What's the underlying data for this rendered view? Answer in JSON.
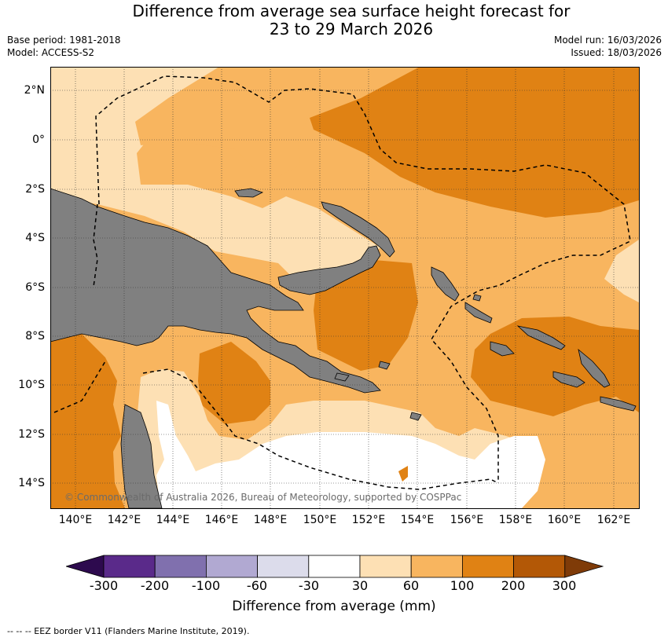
{
  "title_line1": "Difference from average sea surface height forecast for",
  "title_line2": "23 to 29 March 2026",
  "base_period": "Base period: 1981-2018",
  "model": "Model: ACCESS-S2",
  "model_run": "Model run: 16/03/2026",
  "issued": "Issued: 18/03/2026",
  "lat_labels": [
    "2°N",
    "0°",
    "2°S",
    "4°S",
    "6°S",
    "8°S",
    "10°S",
    "12°S",
    "14°S"
  ],
  "lon_labels": [
    "140°E",
    "142°E",
    "144°E",
    "146°E",
    "148°E",
    "150°E",
    "152°E",
    "154°E",
    "156°E",
    "158°E",
    "160°E",
    "162°E"
  ],
  "copyright": "© Commonwealth of Australia 2026, Bureau of Meteorology, supported by COSPPac",
  "colorbar": {
    "title": "Difference from average (mm)",
    "ticks": [
      "-300",
      "-200",
      "-100",
      "-60",
      "-30",
      "30",
      "60",
      "100",
      "200",
      "300"
    ],
    "colors": [
      "#2d0a4e",
      "#5a2a8a",
      "#8070ae",
      "#b1a9d2",
      "#dcdceb",
      "#ffffff",
      "#fde0b4",
      "#f8b55f",
      "#e08214",
      "#b35806",
      "#7f3b08"
    ]
  },
  "footnote": "--  --  -- EEZ border V11 (Flanders Marine Institute, 2019).",
  "colors": {
    "land": "#808080",
    "band_30_60": "#fde0b4",
    "band_60_100": "#f8b55f",
    "band_100_200": "#e08214",
    "neutral": "#ffffff"
  }
}
